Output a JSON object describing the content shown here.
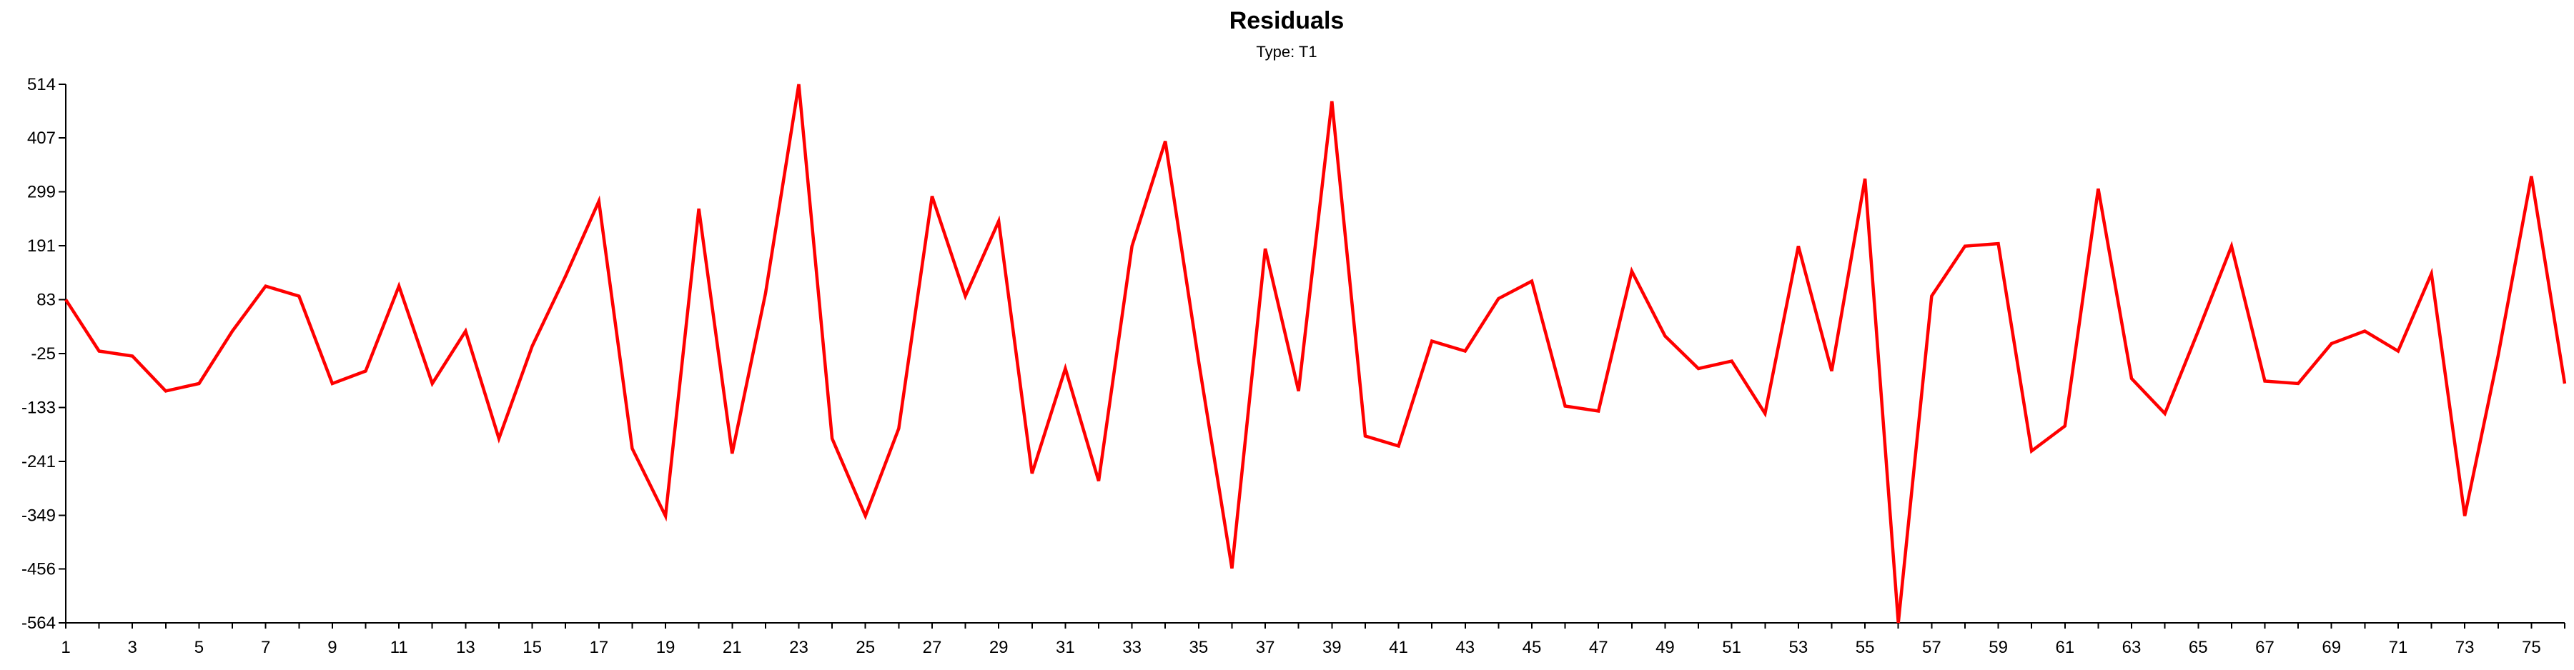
{
  "chart_data": {
    "type": "line",
    "title": "Residuals",
    "subtitle": "Type: T1",
    "x": [
      1,
      2,
      3,
      4,
      5,
      6,
      7,
      8,
      9,
      10,
      11,
      12,
      13,
      14,
      15,
      16,
      17,
      18,
      19,
      20,
      21,
      22,
      23,
      24,
      25,
      26,
      27,
      28,
      29,
      30,
      31,
      32,
      33,
      34,
      35,
      36,
      37,
      38,
      39,
      40,
      41,
      42,
      43,
      44,
      45,
      46,
      47,
      48,
      49,
      50,
      51,
      52,
      53,
      54,
      55,
      56,
      57,
      58,
      59,
      60,
      61,
      62,
      63,
      64,
      65,
      66,
      67,
      68,
      69,
      70,
      71,
      72,
      73,
      74,
      75,
      76
    ],
    "x_tick_labels": [
      "1",
      "3",
      "5",
      "7",
      "9",
      "11",
      "13",
      "15",
      "17",
      "19",
      "21",
      "23",
      "25",
      "27",
      "29",
      "31",
      "33",
      "35",
      "37",
      "39",
      "41",
      "43",
      "45",
      "47",
      "49",
      "51",
      "53",
      "55",
      "57",
      "59",
      "61",
      "63",
      "65",
      "67",
      "69",
      "71",
      "73",
      "75"
    ],
    "y_tick_labels": [
      "514",
      "407",
      "299",
      "191",
      "83",
      "-25",
      "-133",
      "-241",
      "-349",
      "-456",
      "-564"
    ],
    "ylim": [
      -564,
      514
    ],
    "xlim": [
      1,
      76
    ],
    "grid": false,
    "series": [
      {
        "color": "#ff0000",
        "values": [
          83,
          -20,
          -30,
          -100,
          -85,
          20,
          110,
          90,
          -85,
          -60,
          110,
          -85,
          20,
          -195,
          -10,
          130,
          280,
          -215,
          -350,
          265,
          -225,
          95,
          514,
          -195,
          -350,
          -175,
          290,
          90,
          240,
          -265,
          -55,
          -280,
          190,
          400,
          -40,
          -455,
          185,
          -100,
          480,
          -190,
          -210,
          0,
          -20,
          85,
          120,
          -130,
          -140,
          140,
          10,
          -55,
          -40,
          -145,
          190,
          -60,
          325,
          -564,
          90,
          190,
          195,
          -220,
          -170,
          305,
          -75,
          -145,
          20,
          190,
          -80,
          -85,
          -5,
          20,
          -20,
          135,
          -350,
          -30,
          330,
          -85
        ]
      }
    ]
  }
}
